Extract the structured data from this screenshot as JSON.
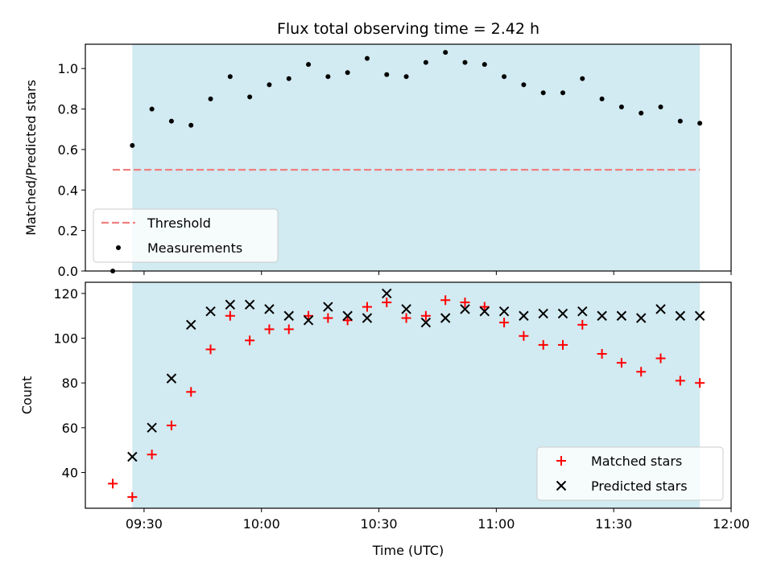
{
  "colors": {
    "window_fill": "#add8e6",
    "threshold": "#f08080",
    "matched": "#ff0000",
    "predicted": "#000000",
    "measurement": "#000000"
  },
  "chart_data": [
    {
      "type": "scatter",
      "title": "Flux total observing time = 2.42 h",
      "xlabel": "",
      "ylabel": "Matched/Predicted stars",
      "xlim": [
        "09:15",
        "12:00"
      ],
      "ylim": [
        0.0,
        1.12
      ],
      "yticks": [
        0.0,
        0.2,
        0.4,
        0.6,
        0.8,
        1.0
      ],
      "shaded_window": [
        "09:27",
        "11:52"
      ],
      "threshold": {
        "name": "Threshold",
        "value": 0.5,
        "x_range": [
          "09:22",
          "11:52"
        ],
        "style": "dashed"
      },
      "series": [
        {
          "name": "Measurements",
          "x": [
            "09:22",
            "09:27",
            "09:32",
            "09:37",
            "09:42",
            "09:47",
            "09:52",
            "09:57",
            "10:02",
            "10:07",
            "10:12",
            "10:17",
            "10:22",
            "10:27",
            "10:32",
            "10:37",
            "10:42",
            "10:47",
            "10:52",
            "10:57",
            "11:02",
            "11:07",
            "11:12",
            "11:17",
            "11:22",
            "11:27",
            "11:32",
            "11:37",
            "11:42",
            "11:47",
            "11:52"
          ],
          "values": [
            0.0,
            0.62,
            0.8,
            0.74,
            0.72,
            0.85,
            0.96,
            0.86,
            0.92,
            0.95,
            1.02,
            0.96,
            0.98,
            1.05,
            0.97,
            0.96,
            1.03,
            1.08,
            1.03,
            1.02,
            0.96,
            0.92,
            0.88,
            0.88,
            0.95,
            0.85,
            0.81,
            0.78,
            0.81,
            0.74,
            0.73
          ]
        }
      ],
      "legend": {
        "placement": "lower-left",
        "entries": [
          "Threshold",
          "Measurements"
        ]
      }
    },
    {
      "type": "scatter",
      "title": "",
      "xlabel": "Time (UTC)",
      "ylabel": "Count",
      "xlim": [
        "09:15",
        "12:00"
      ],
      "ylim": [
        24,
        125
      ],
      "yticks": [
        40,
        60,
        80,
        100,
        120
      ],
      "xticks": [
        "09:30",
        "10:00",
        "10:30",
        "11:00",
        "11:30",
        "12:00"
      ],
      "shaded_window": [
        "09:27",
        "11:52"
      ],
      "series": [
        {
          "name": "Matched stars",
          "marker": "plus",
          "x": [
            "09:22",
            "09:27",
            "09:32",
            "09:37",
            "09:42",
            "09:47",
            "09:52",
            "09:57",
            "10:02",
            "10:07",
            "10:12",
            "10:17",
            "10:22",
            "10:27",
            "10:32",
            "10:37",
            "10:42",
            "10:47",
            "10:52",
            "10:57",
            "11:02",
            "11:07",
            "11:12",
            "11:17",
            "11:22",
            "11:27",
            "11:32",
            "11:37",
            "11:42",
            "11:47",
            "11:52"
          ],
          "values": [
            35,
            29,
            48,
            61,
            76,
            95,
            110,
            99,
            104,
            104,
            110,
            109,
            108,
            114,
            116,
            109,
            110,
            117,
            116,
            114,
            107,
            101,
            97,
            97,
            106,
            93,
            89,
            85,
            91,
            81,
            80
          ]
        },
        {
          "name": "Predicted stars",
          "marker": "x",
          "x": [
            "09:27",
            "09:32",
            "09:37",
            "09:42",
            "09:47",
            "09:52",
            "09:57",
            "10:02",
            "10:07",
            "10:12",
            "10:17",
            "10:22",
            "10:27",
            "10:32",
            "10:37",
            "10:42",
            "10:47",
            "10:52",
            "10:57",
            "11:02",
            "11:07",
            "11:12",
            "11:17",
            "11:22",
            "11:27",
            "11:32",
            "11:37",
            "11:42",
            "11:47",
            "11:52"
          ],
          "values": [
            47,
            60,
            82,
            106,
            112,
            115,
            115,
            113,
            110,
            108,
            114,
            110,
            109,
            120,
            113,
            107,
            109,
            113,
            112,
            112,
            110,
            111,
            111,
            112,
            110,
            110,
            109,
            113,
            110,
            110
          ]
        }
      ],
      "legend": {
        "placement": "lower-right",
        "entries": [
          "Matched stars",
          "Predicted stars"
        ]
      }
    }
  ]
}
